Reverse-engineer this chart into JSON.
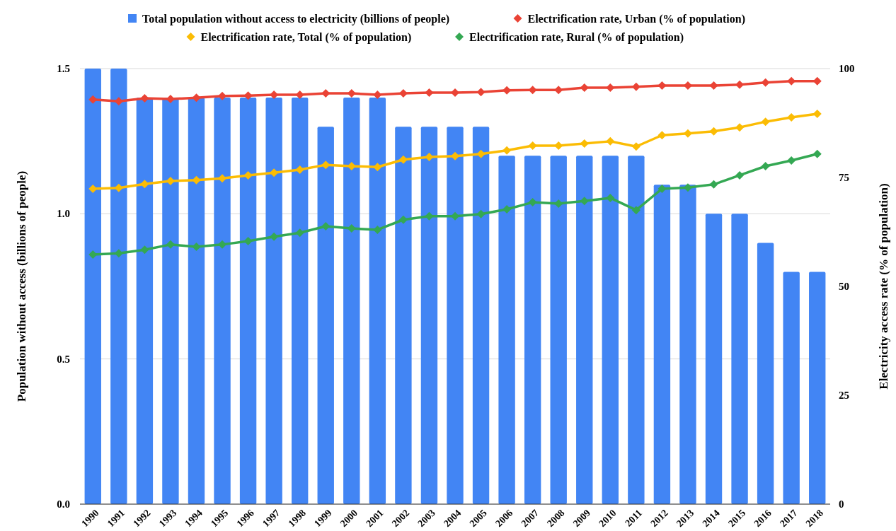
{
  "chart_data": {
    "type": "bar",
    "xlabel": null,
    "ylabel": "Population without access (billions of people)",
    "y2label": "Electricity access rate (% of population)",
    "categories": [
      "1990",
      "1991",
      "1992",
      "1993",
      "1994",
      "1995",
      "1996",
      "1997",
      "1998",
      "1999",
      "2000",
      "2001",
      "2002",
      "2003",
      "2004",
      "2005",
      "2006",
      "2007",
      "2008",
      "2009",
      "2010",
      "2011",
      "2012",
      "2013",
      "2014",
      "2015",
      "2016",
      "2017",
      "2018"
    ],
    "series": [
      {
        "name": "Total population without access to electricity (billions of people)",
        "color": "#4285f4",
        "values": [
          1.5,
          1.5,
          1.4,
          1.4,
          1.4,
          1.4,
          1.4,
          1.4,
          1.4,
          1.3,
          1.4,
          1.4,
          1.3,
          1.3,
          1.3,
          1.3,
          1.2,
          1.2,
          1.2,
          1.2,
          1.2,
          1.2,
          1.1,
          1.1,
          1.0,
          1.0,
          0.9,
          0.8,
          0.8
        ]
      },
      {
        "name": "Electrification rate, Urban (% of population)",
        "type": "line",
        "axis": "y2",
        "color": "#ea4335",
        "values": [
          92.9,
          92.5,
          93.2,
          93.0,
          93.3,
          93.7,
          93.8,
          94.0,
          94.0,
          94.3,
          94.3,
          94.0,
          94.3,
          94.5,
          94.5,
          94.6,
          95.0,
          95.1,
          95.1,
          95.6,
          95.6,
          95.8,
          96.1,
          96.1,
          96.1,
          96.3,
          96.8,
          97.1,
          97.1
        ]
      },
      {
        "name": "Electrification rate, Total (% of population)",
        "type": "line",
        "axis": "y2",
        "color": "#fbbc04",
        "values": [
          72.4,
          72.6,
          73.5,
          74.2,
          74.4,
          74.8,
          75.5,
          76.1,
          76.8,
          77.9,
          77.6,
          77.4,
          79.1,
          79.7,
          79.9,
          80.4,
          81.2,
          82.3,
          82.3,
          82.8,
          83.3,
          82.1,
          84.7,
          85.1,
          85.6,
          86.5,
          87.8,
          88.8,
          89.6
        ]
      },
      {
        "name": "Electrification rate, Rural (% of population)",
        "type": "line",
        "axis": "y2",
        "color": "#34a853",
        "values": [
          57.3,
          57.6,
          58.4,
          59.6,
          59.1,
          59.6,
          60.4,
          61.4,
          62.3,
          63.8,
          63.3,
          63.0,
          65.3,
          66.1,
          66.1,
          66.6,
          67.7,
          69.3,
          69.0,
          69.6,
          70.3,
          67.5,
          72.4,
          72.7,
          73.4,
          75.5,
          77.6,
          78.9,
          80.4
        ]
      }
    ],
    "ylim": [
      0,
      1.5
    ],
    "yticks": [
      {
        "value": 0,
        "label": "0.0"
      },
      {
        "value": 0.5,
        "label": "0.5"
      },
      {
        "value": 1,
        "label": "1.0"
      },
      {
        "value": 1.5,
        "label": "1.5"
      }
    ],
    "y2lim": [
      0,
      100
    ],
    "y2ticks": [
      0,
      25,
      50,
      75,
      100
    ],
    "grid": "y",
    "legend": "top",
    "marker": "diamond",
    "line_style": "solid"
  }
}
